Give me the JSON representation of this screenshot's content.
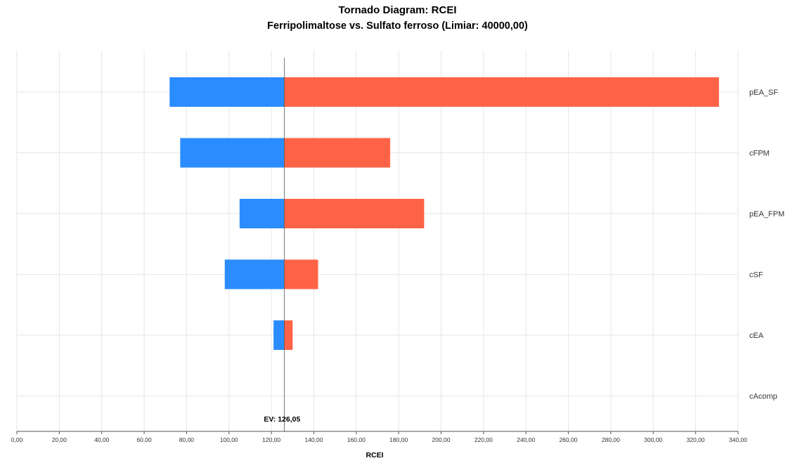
{
  "chart_data": {
    "type": "bar",
    "orientation": "horizontal-tornado",
    "title": "Tornado Diagram: RCEI",
    "subtitle": "Ferripolimaltose vs. Sulfato ferroso (Limiar: 40000,00)",
    "xlabel": "RCEI",
    "ylabel": "",
    "xlim": [
      0,
      340
    ],
    "x_ticks": [
      "0,00",
      "20,00",
      "40,00",
      "60,00",
      "80,00",
      "100,00",
      "120,00",
      "140,00",
      "160,00",
      "180,00",
      "200,00",
      "220,00",
      "240,00",
      "260,00",
      "280,00",
      "300,00",
      "320,00",
      "340,00"
    ],
    "grid": true,
    "ev": 126.05,
    "ev_label": "EV: 126,05",
    "category_label_side": "right",
    "categories": [
      "pEA_SF",
      "cFPM",
      "pEA_FPM",
      "cSF",
      "cEA",
      "cAcomp"
    ],
    "series": [
      {
        "color": "#2b8cff",
        "low": [
          72,
          77,
          105,
          98,
          121,
          126.05
        ]
      },
      {
        "color": "#ff6347",
        "high": [
          331,
          176,
          192,
          142,
          130,
          126.05
        ]
      }
    ]
  }
}
